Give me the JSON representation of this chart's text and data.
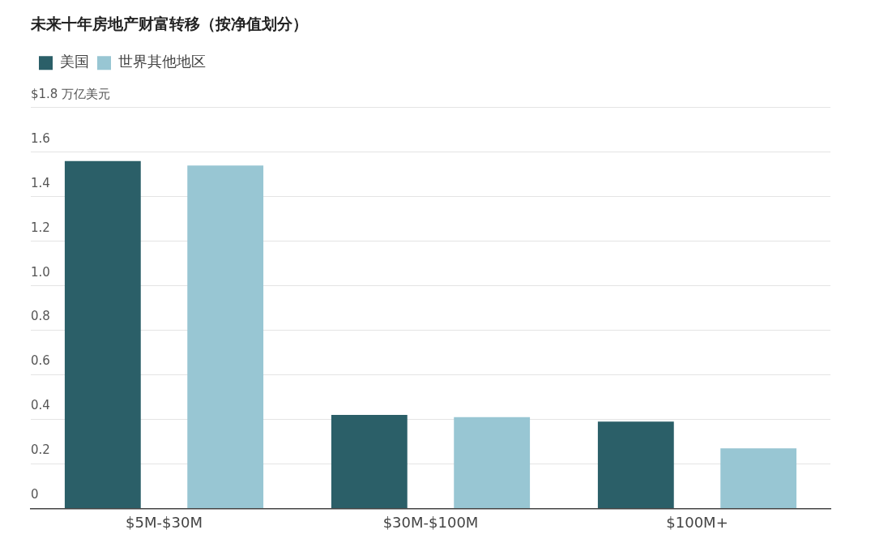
{
  "chart_data": {
    "type": "bar",
    "title": "未来十年房地产财富转移（按净值划分）",
    "categories": [
      "$5M-$30M",
      "$30M-$100M",
      "$100M+"
    ],
    "series": [
      {
        "name": "美国",
        "color": "#2b5f68",
        "values": [
          1.56,
          0.42,
          0.39
        ]
      },
      {
        "name": "世界其他地区",
        "color": "#98c6d3",
        "values": [
          1.54,
          0.41,
          0.27
        ]
      }
    ],
    "ylim": [
      0,
      1.8
    ],
    "yticks": [
      0,
      0.2,
      0.4,
      0.6,
      0.8,
      {
        "value": 1,
        "label": "1.0"
      },
      1.2,
      1.4,
      1.6,
      {
        "value": 1.8,
        "label": "$1.8 万亿美元"
      }
    ],
    "grid": "y",
    "legend": "top left"
  }
}
